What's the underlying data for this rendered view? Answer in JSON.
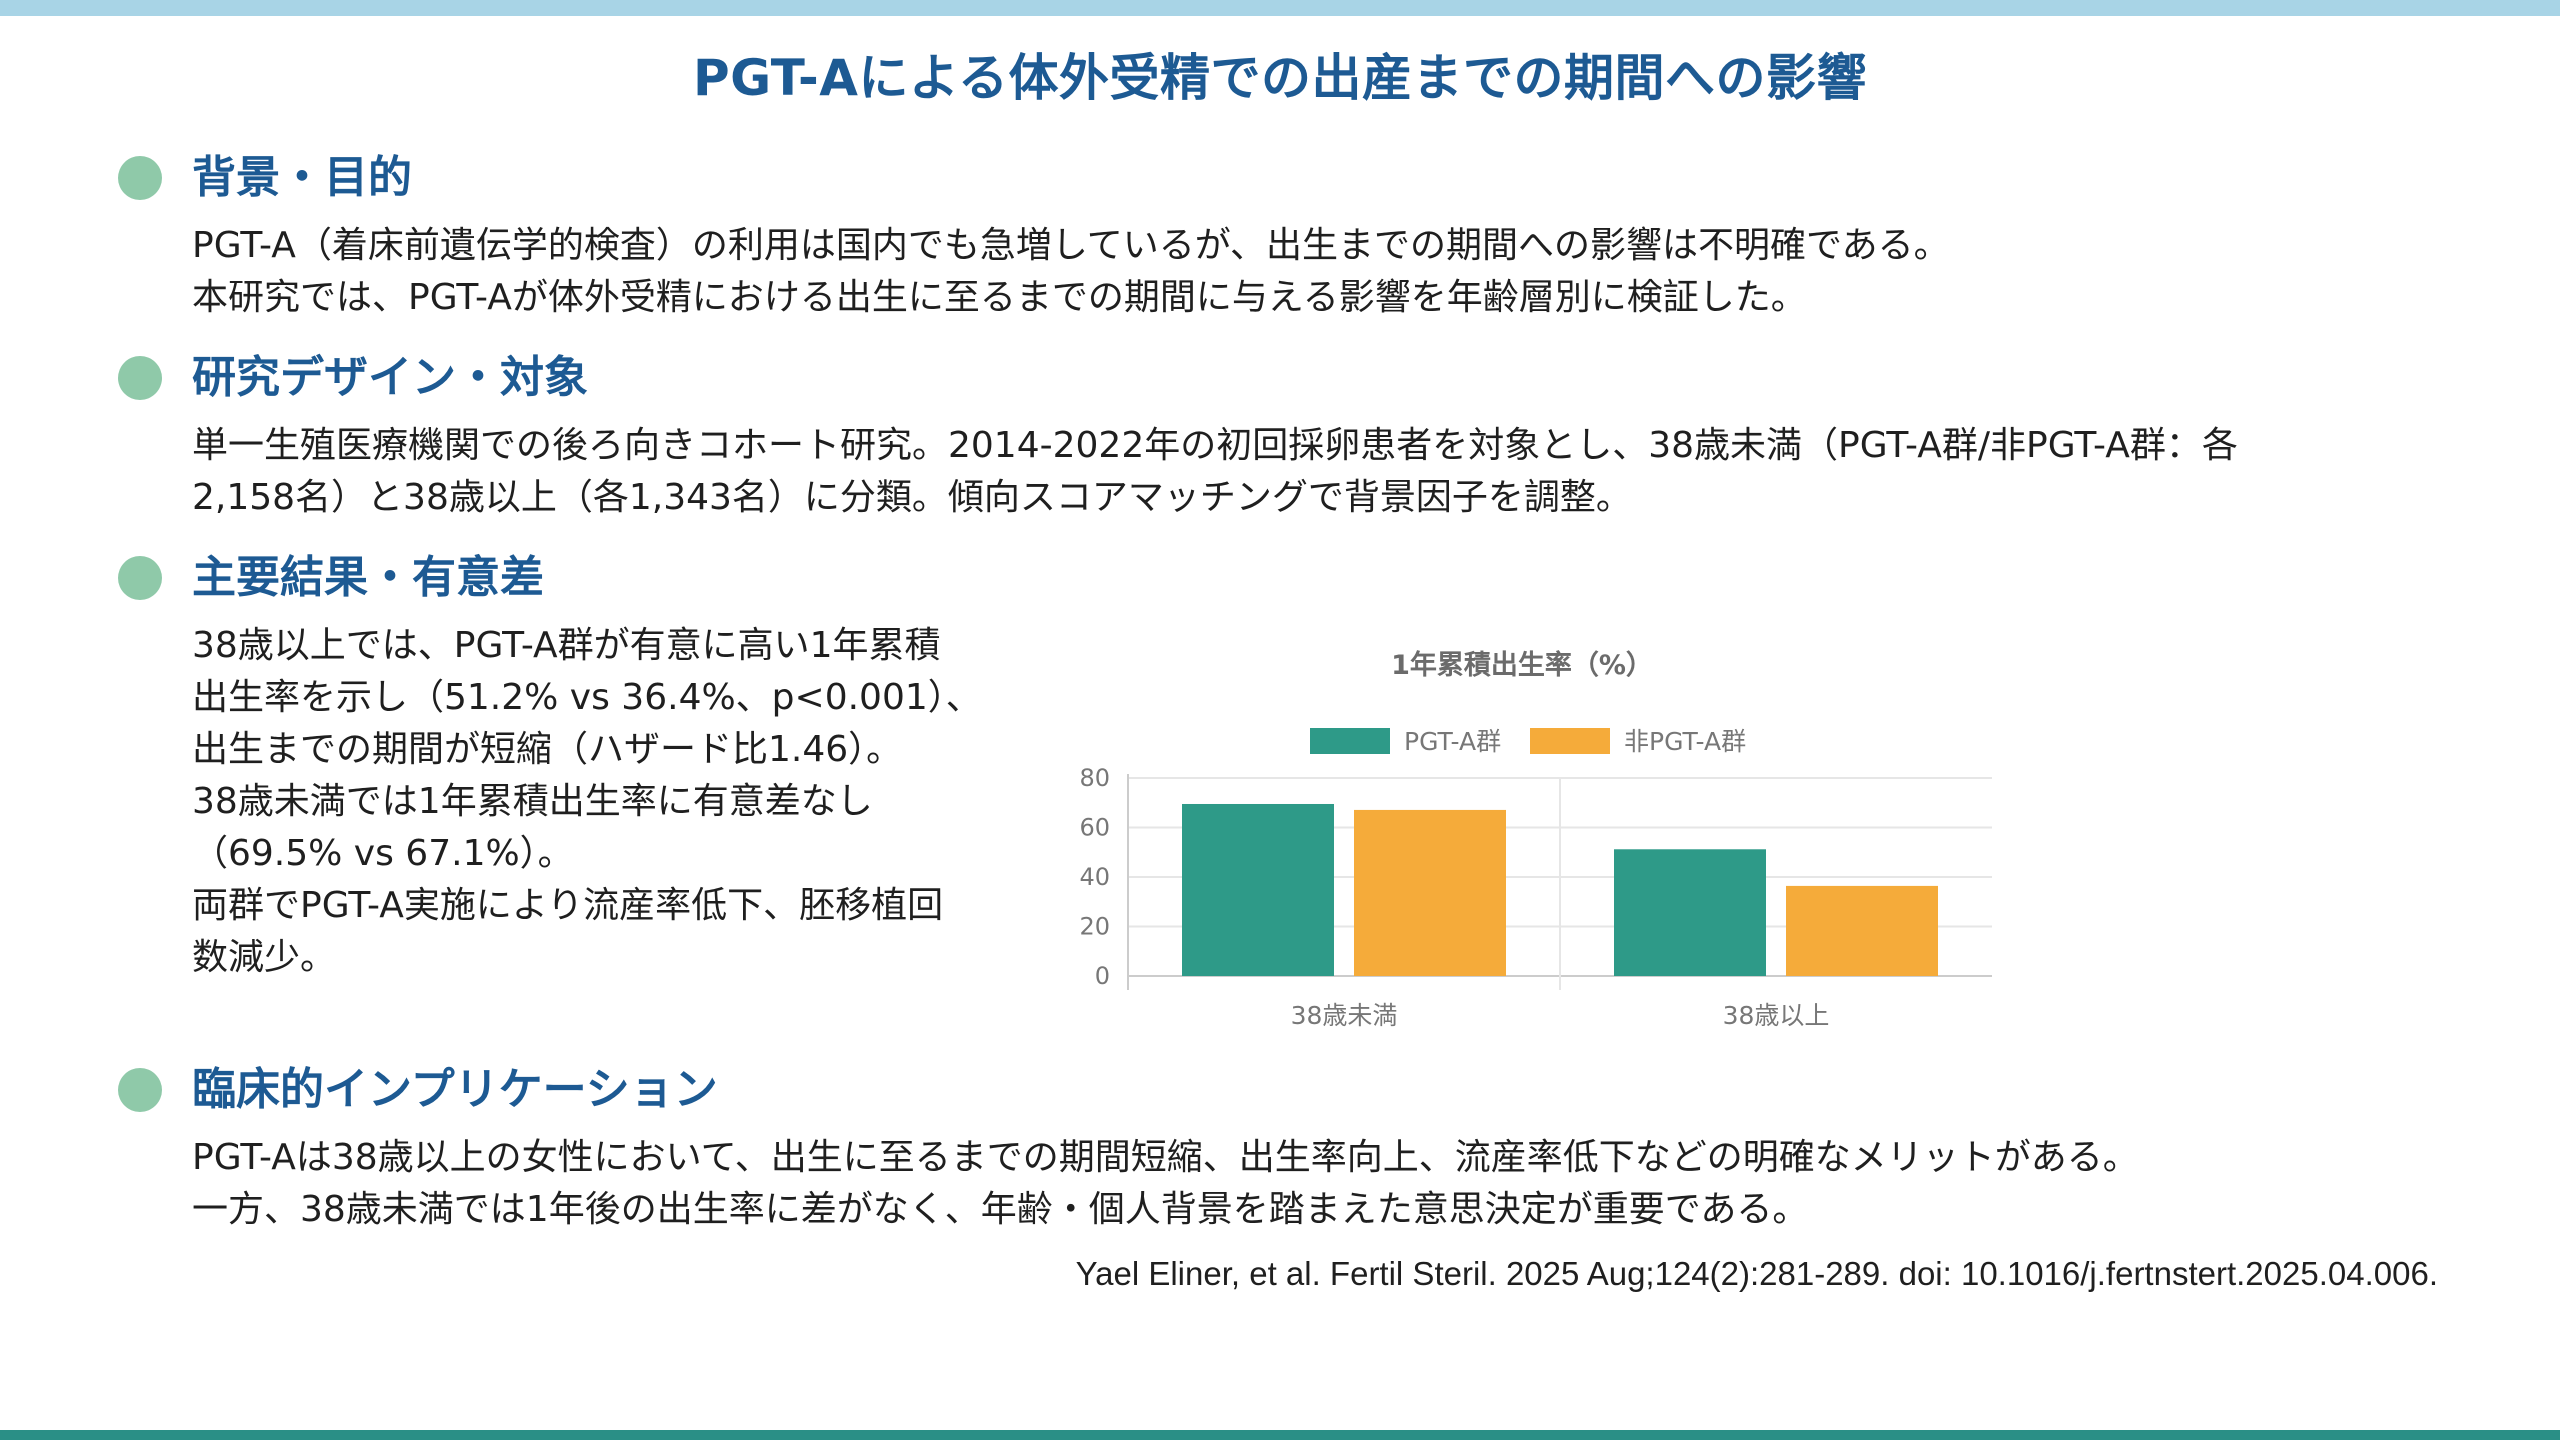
{
  "title": "PGT-Aによる体外受精での出産までの期間への影響",
  "sections": {
    "background": {
      "heading": "背景・目的",
      "lines": [
        "PGT-A（着床前遺伝学的検査）の利用は国内でも急増しているが、出生までの期間への影響は不明確である。",
        "本研究では、PGT-Aが体外受精における出生に至るまでの期間に与える影響を年齢層別に検証した。"
      ]
    },
    "design": {
      "heading": "研究デザイン・対象",
      "lines": [
        "単一生殖医療機関での後ろ向きコホート研究。2014-2022年の初回採卵患者を対象とし、38歳未満（PGT-A群/非PGT-A群：各",
        "2,158名）と38歳以上（各1,343名）に分類。傾向スコアマッチングで背景因子を調整。"
      ]
    },
    "results": {
      "heading": "主要結果・有意差",
      "lines": [
        "38歳以上では、PGT-A群が有意に高い1年累積",
        "出生率を示し（51.2% vs 36.4%、p<0.001）、",
        "出生までの期間が短縮（ハザード比1.46）。",
        "38歳未満では1年累積出生率に有意差なし",
        "（69.5% vs 67.1%）。",
        "両群でPGT-A実施により流産率低下、胚移植回",
        "数減少。"
      ]
    },
    "implications": {
      "heading": "臨床的インプリケーション",
      "lines": [
        "PGT-Aは38歳以上の女性において、出生に至るまでの期間短縮、出生率向上、流産率低下などの明確なメリットがある。",
        "一方、38歳未満では1年後の出生率に差がなく、年齢・個人背景を踏まえた意思決定が重要である。"
      ]
    }
  },
  "citation": "Yael Eliner, et al. Fertil Steril. 2025 Aug;124(2):281-289.  doi: 10.1016/j.fertnstert.2025.04.006.",
  "colors": {
    "title": "#1d5a93",
    "bullet": "#8fc9a9",
    "top_bar": "#a8d4e6",
    "bottom_bar": "#2a8f86"
  },
  "chart_data": {
    "type": "bar",
    "title": "1年累積出生率（%）",
    "categories": [
      "38歳未満",
      "38歳以上"
    ],
    "series": [
      {
        "name": "PGT-A群",
        "values": [
          69.5,
          51.2
        ],
        "color": "#2e9a88"
      },
      {
        "name": "非PGT-A群",
        "values": [
          67.1,
          36.4
        ],
        "color": "#f5ab3a"
      }
    ],
    "ylim": [
      0,
      80
    ],
    "yticks": [
      0,
      20,
      40,
      60,
      80
    ],
    "grid": true,
    "legend": "top"
  }
}
